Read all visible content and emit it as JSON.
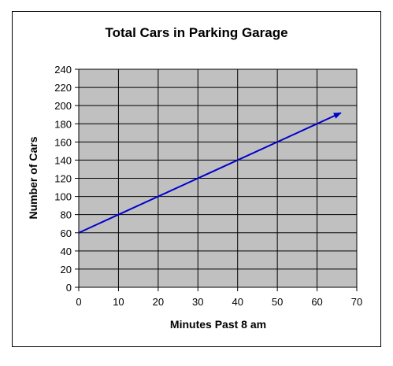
{
  "chart_data": {
    "type": "line",
    "title": "Total Cars in Parking Garage",
    "xlabel": "Minutes Past 8 am",
    "ylabel": "Number of Cars",
    "xlim": [
      0,
      70
    ],
    "ylim": [
      0,
      240
    ],
    "x_ticks": [
      0,
      10,
      20,
      30,
      40,
      50,
      60,
      70
    ],
    "y_ticks": [
      0,
      20,
      40,
      60,
      80,
      100,
      120,
      140,
      160,
      180,
      200,
      220,
      240
    ],
    "grid": true,
    "series": [
      {
        "x": [
          0,
          66
        ],
        "y": [
          60,
          192
        ],
        "arrow_end": true
      }
    ],
    "colors": {
      "plot_background": "#c0c0c0",
      "line": "#0000cc",
      "grid": "#000000"
    }
  }
}
